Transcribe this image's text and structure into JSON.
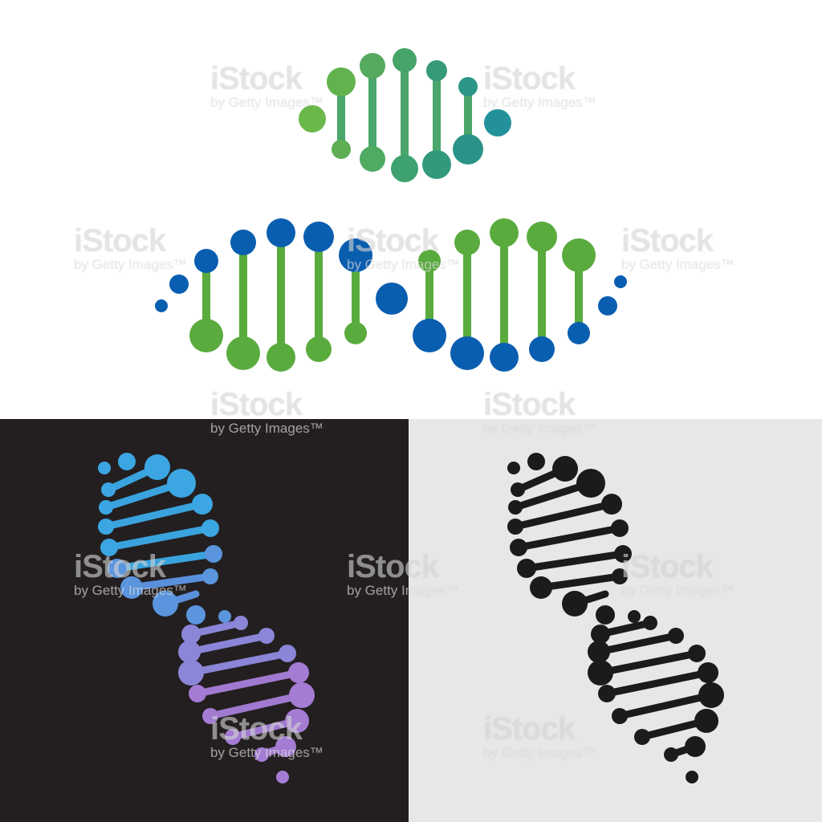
{
  "watermark": {
    "logo_text": "iStock",
    "credit_text": "by Getty Images™"
  },
  "colors": {
    "top_panel": "#ffffff",
    "dark_panel": "#231f20",
    "light_panel": "#e6e7e8",
    "green": "#5aab3e",
    "blue": "#0a5eb0",
    "teal": "#27928f",
    "sky": "#3a9fdc",
    "violet": "#a07ad0",
    "black": "#1c1a1b"
  },
  "illustrations": [
    {
      "name": "green-teal-dna-helix",
      "style": "gradient green to teal"
    },
    {
      "name": "blue-green-dna-helix",
      "style": "two-tone blue and green"
    },
    {
      "name": "blue-violet-dna-helix",
      "style": "gradient blue to violet on dark"
    },
    {
      "name": "black-dna-helix",
      "style": "solid black on light grey"
    }
  ]
}
